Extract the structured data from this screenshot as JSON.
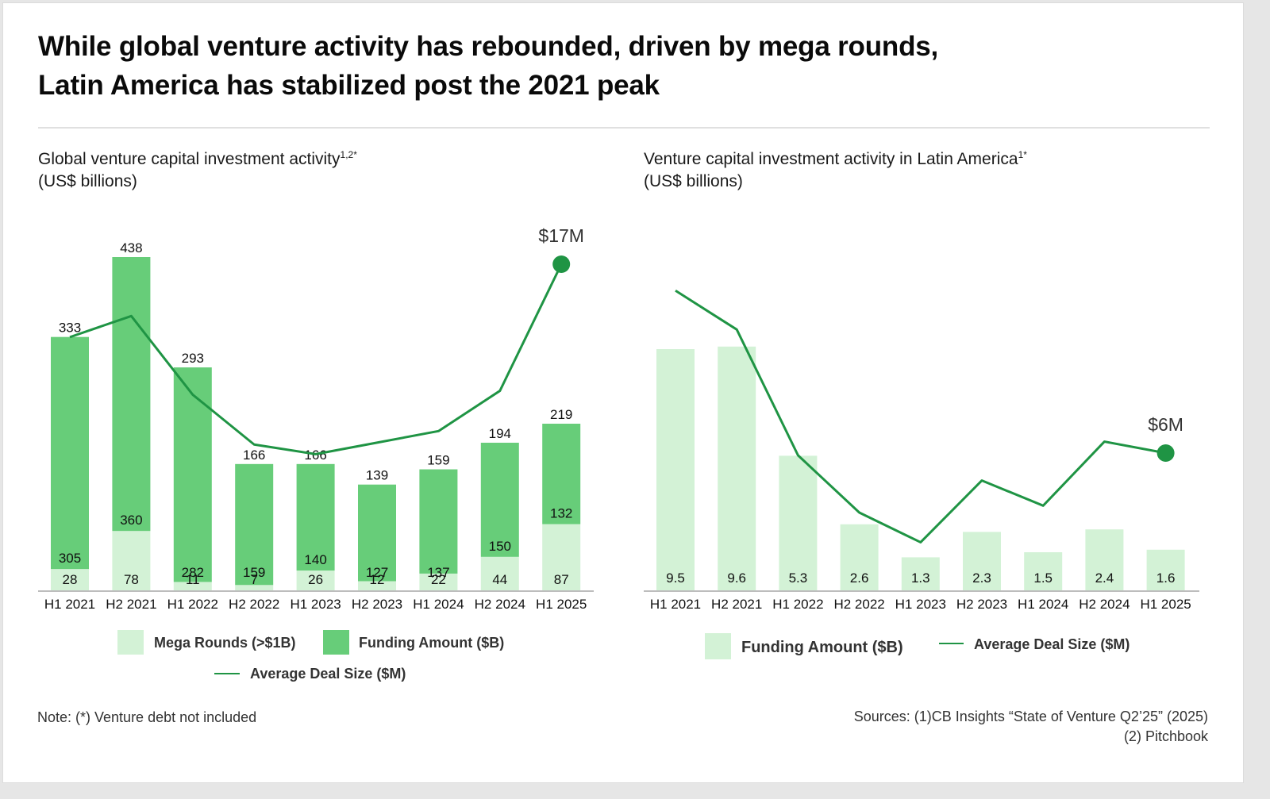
{
  "header": {
    "title_line1": "While global venture activity has rebounded, driven by mega rounds,",
    "title_line2": "Latin America has stabilized post the 2021 peak"
  },
  "colors": {
    "funding": "#67cd79",
    "mega": "#d3f2d6",
    "line": "#1f9444",
    "axis": "#bdbdbd"
  },
  "left_subtitle": {
    "main": "Global venture capital investment activity",
    "sup": "1,2*",
    "unit": "(US$ billions)"
  },
  "right_subtitle": {
    "main": "Venture capital investment activity in Latin America",
    "sup": "1*",
    "unit": "(US$ billions)"
  },
  "chart_data": [
    {
      "type": "bar",
      "stacked": true,
      "title": "Global venture capital investment activity (US$ billions)",
      "categories": [
        "H1 2021",
        "H2 2021",
        "H1 2022",
        "H2 2022",
        "H1 2023",
        "H2 2023",
        "H1 2024",
        "H2 2024",
        "H1 2025"
      ],
      "series": [
        {
          "name": "Mega Rounds (>$1B)",
          "values": [
            28,
            78,
            11,
            7,
            26,
            12,
            22,
            44,
            87
          ]
        },
        {
          "name": "Funding Amount ($B)",
          "values": [
            305,
            360,
            282,
            159,
            140,
            127,
            137,
            150,
            132
          ]
        },
        {
          "name": "Average Deal Size ($M)",
          "type": "line",
          "values": [
            13.2,
            14.3,
            10.2,
            7.6,
            7.1,
            7.7,
            8.3,
            10.4,
            17
          ]
        }
      ],
      "totals": [
        333,
        438,
        293,
        166,
        166,
        139,
        159,
        194,
        219
      ],
      "end_label": "$17M",
      "legend": [
        "Mega Rounds (>$1B)",
        "Funding Amount ($B)",
        "Average Deal Size ($M)"
      ],
      "legend_position": "bottom",
      "ylim": [
        0,
        438
      ],
      "grid": false
    },
    {
      "type": "bar",
      "title": "Venture capital investment activity in Latin America (US$ billions)",
      "categories": [
        "H1 2021",
        "H2 2021",
        "H1 2022",
        "H2 2022",
        "H1 2023",
        "H2 2023",
        "H1 2024",
        "H2 2024",
        "H1 2025"
      ],
      "series": [
        {
          "name": "Funding Amount ($B)",
          "values": [
            9.5,
            9.6,
            5.3,
            2.6,
            1.3,
            2.3,
            1.5,
            2.4,
            1.6
          ]
        },
        {
          "name": "Average Deal Size ($M)",
          "type": "line",
          "values": [
            13.1,
            11.4,
            5.9,
            3.4,
            2.1,
            4.8,
            3.7,
            6.5,
            6.0
          ]
        }
      ],
      "end_label": "$6M",
      "legend": [
        "Funding Amount ($B)",
        "Average Deal Size ($M)"
      ],
      "legend_position": "bottom",
      "ylim": [
        0,
        9.6
      ],
      "grid": false
    }
  ],
  "footer": {
    "note": "Note: (*) Venture debt not included",
    "sources_line1": "Sources: (1)CB Insights “State of Venture Q2’25” (2025)",
    "sources_line2": "(2) Pitchbook"
  }
}
